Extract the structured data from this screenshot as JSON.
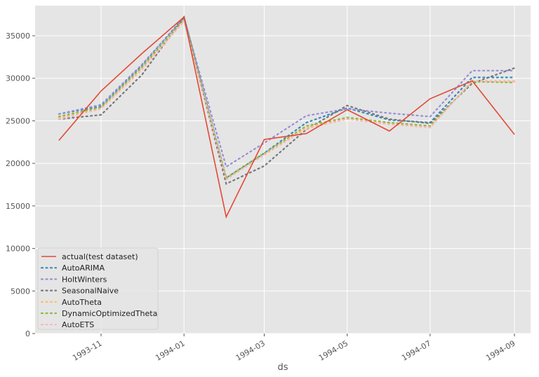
{
  "chart_data": {
    "type": "line",
    "title": "",
    "xlabel": "ds",
    "ylabel": "",
    "ylim": [
      0,
      38500
    ],
    "grid": true,
    "legend_position": "lower left",
    "x": [
      "1993-10-01",
      "1993-11-01",
      "1993-12-01",
      "1994-01-01",
      "1994-02-01",
      "1994-03-01",
      "1994-04-01",
      "1994-05-01",
      "1994-06-01",
      "1994-07-01",
      "1994-08-01",
      "1994-09-01"
    ],
    "x_ticks": [
      "1993-11",
      "1994-01",
      "1994-03",
      "1994-05",
      "1994-07",
      "1994-09"
    ],
    "y_ticks": [
      0,
      5000,
      10000,
      15000,
      20000,
      25000,
      30000,
      35000
    ],
    "series": [
      {
        "name": "actual(test dataset)",
        "color": "#E24A33",
        "style": "solid",
        "values": [
          22700,
          28500,
          32900,
          37200,
          13700,
          22800,
          23500,
          26300,
          23800,
          27600,
          29700,
          23400
        ]
      },
      {
        "name": "AutoARIMA",
        "color": "#348ABD",
        "style": "dotted",
        "values": [
          25800,
          26700,
          31500,
          37200,
          18300,
          21200,
          24800,
          26500,
          25100,
          24800,
          30100,
          30100
        ]
      },
      {
        "name": "HoltWinters",
        "color": "#988ED5",
        "style": "dotted",
        "values": [
          25800,
          26900,
          31600,
          37100,
          19600,
          22400,
          25600,
          26400,
          25900,
          25500,
          30900,
          30900
        ]
      },
      {
        "name": "SeasonalNaive",
        "color": "#777777",
        "style": "dotted",
        "values": [
          25200,
          25700,
          30400,
          37200,
          17600,
          19700,
          24000,
          26800,
          25200,
          24700,
          29400,
          31200
        ]
      },
      {
        "name": "AutoTheta",
        "color": "#FBC15E",
        "style": "dotted",
        "values": [
          25400,
          26500,
          31200,
          36800,
          18200,
          21100,
          24200,
          25300,
          24700,
          24200,
          29700,
          29600
        ]
      },
      {
        "name": "DynamicOptimizedTheta",
        "color": "#8EBA42",
        "style": "dotted",
        "values": [
          25500,
          26600,
          31300,
          36900,
          18300,
          21200,
          24400,
          25400,
          24800,
          24400,
          29600,
          29500
        ]
      },
      {
        "name": "AutoETS",
        "color": "#FFB5B8",
        "style": "dotted",
        "values": [
          25200,
          26400,
          31000,
          36700,
          18100,
          21000,
          24100,
          25200,
          24600,
          24200,
          29700,
          29700
        ]
      }
    ]
  },
  "legend": {
    "items": [
      {
        "label": "actual(test dataset)"
      },
      {
        "label": "AutoARIMA"
      },
      {
        "label": "HoltWinters"
      },
      {
        "label": "SeasonalNaive"
      },
      {
        "label": "AutoTheta"
      },
      {
        "label": "DynamicOptimizedTheta"
      },
      {
        "label": "AutoETS"
      }
    ]
  },
  "axes": {
    "xlabel": "ds"
  }
}
